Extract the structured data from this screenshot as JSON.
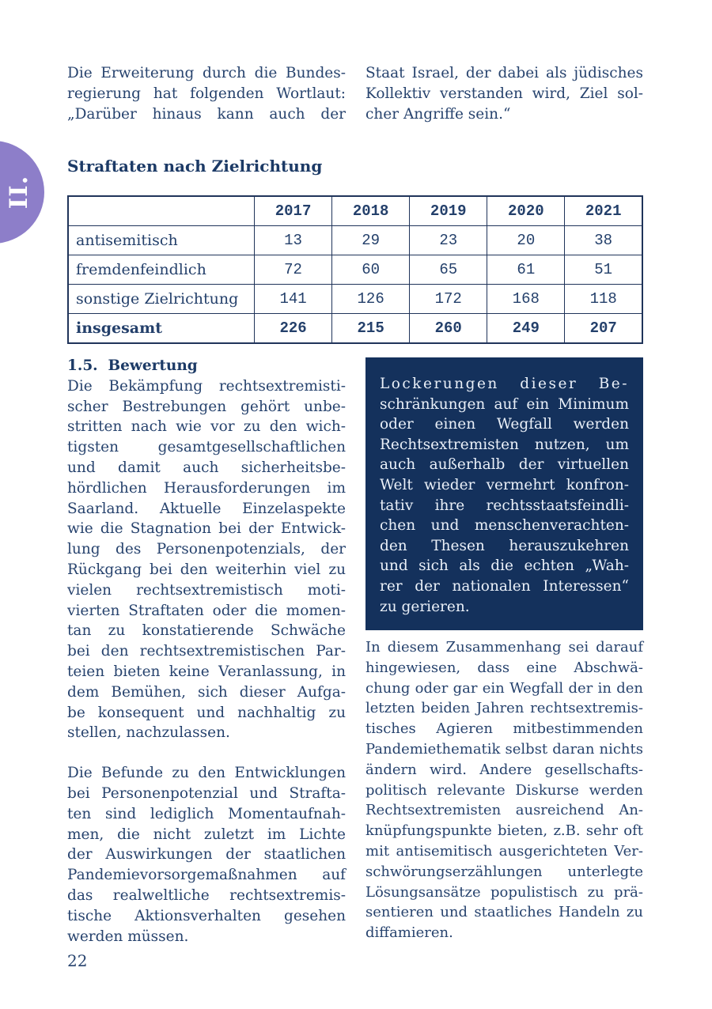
{
  "page": {
    "number": "22",
    "chapter_tab": "II."
  },
  "colors": {
    "body_text": "#27436e",
    "heading_text": "#1c3a66",
    "callout_background": "#14315c",
    "callout_text": "#eaf0f8",
    "chapter_tab_purple": "#8d7ec9",
    "table_border": "#20345a",
    "page_background": "#ffffff"
  },
  "intro": {
    "left_lines": [
      "Die Erweiterung durch die Bundes-",
      "regierung hat folgenden Wortlaut:",
      "„Darüber hinaus kann auch der"
    ],
    "right_lines": [
      "Staat Israel, der dabei als jüdisches",
      "Kollektiv verstanden wird, Ziel sol-",
      "cher Angriffe sein.“"
    ]
  },
  "straftaten": {
    "heading": "Straftaten nach Zielrichtung",
    "table": {
      "columns": [
        "",
        "2017",
        "2018",
        "2019",
        "2020",
        "2021"
      ],
      "rows": [
        {
          "label": "antisemitisch",
          "values": [
            "13",
            "29",
            "23",
            "20",
            "38"
          ]
        },
        {
          "label": "fremdenfeindlich",
          "values": [
            "72",
            "60",
            "65",
            "61",
            "51"
          ]
        },
        {
          "label": "sonstige Zielrichtung",
          "values": [
            "141",
            "126",
            "172",
            "168",
            "118"
          ]
        },
        {
          "label": "insgesamt",
          "values": [
            "226",
            "215",
            "260",
            "249",
            "207"
          ]
        }
      ]
    }
  },
  "chart_data": {
    "type": "table",
    "title": "Straftaten nach Zielrichtung",
    "categories": [
      "2017",
      "2018",
      "2019",
      "2020",
      "2021"
    ],
    "series": [
      {
        "name": "antisemitisch",
        "values": [
          13,
          29,
          23,
          20,
          38
        ]
      },
      {
        "name": "fremdenfeindlich",
        "values": [
          72,
          60,
          65,
          61,
          51
        ]
      },
      {
        "name": "sonstige Zielrichtung",
        "values": [
          141,
          126,
          172,
          168,
          118
        ]
      },
      {
        "name": "insgesamt",
        "values": [
          226,
          215,
          260,
          249,
          207
        ]
      }
    ]
  },
  "bewertung": {
    "heading": "1.5.  Bewertung",
    "left_para1_lines": [
      "Die Bekämpfung rechtsextremisti-",
      "scher Bestrebungen gehört unbe-",
      "stritten nach wie vor zu den wich-",
      "tigsten gesamtgesellschaftlichen",
      "und damit auch sicherheitsbe-",
      "hördlichen Herausforderungen im",
      "Saarland. Aktuelle Einzelaspekte",
      "wie die Stagnation bei der Entwick-",
      "lung des Personenpotenzials, der",
      "Rückgang bei den weiterhin viel zu",
      "vielen rechtsextremistisch moti-",
      "vierten Straftaten oder die momen-",
      "tan zu konstatierende Schwäche",
      "bei den rechtsextremistischen Par-",
      "teien bieten keine Veranlassung, in",
      "dem Bemühen, sich dieser Aufga-",
      "be konsequent und nachhaltig zu",
      "stellen, nachzulassen."
    ],
    "left_para2_lines": [
      "Die Befunde zu den Entwicklungen",
      "bei Personenpotenzial und Strafta-",
      "ten sind lediglich Momentaufnah-",
      "men, die nicht zuletzt im Lichte",
      "der Auswirkungen der staatlichen",
      "Pandemievorsorgemaßnahmen auf",
      "das realweltliche rechtsextremis-",
      "tische Aktionsverhalten gesehen",
      "werden müssen."
    ],
    "callout_lines": [
      "Lockerungen dieser Be-",
      "schränkungen auf ein Minimum",
      "oder einen Wegfall werden",
      "Rechtsextremisten nutzen, um",
      "auch außerhalb der virtuellen",
      "Welt wieder vermehrt konfron-",
      "tativ ihre rechtsstaatsfeindli-",
      "chen und menschenverachten-",
      "den Thesen herauszukehren",
      "und sich als die echten „Wah-",
      "rer der nationalen Interessen“",
      "zu gerieren."
    ],
    "right_para_lines": [
      "In diesem Zusammenhang sei darauf",
      "hingewiesen, dass eine Abschwä-",
      "chung oder gar ein Wegfall der in den",
      "letzten beiden Jahren rechtsextremis-",
      "tisches Agieren mitbestimmenden",
      "Pandemiethematik selbst daran nichts",
      "ändern wird. Andere gesellschafts-",
      "politisch relevante Diskurse werden",
      "Rechtsextremisten ausreichend An-",
      "knüpfungspunkte bieten, z.B. sehr oft",
      "mit antisemitisch ausgerichteten Ver-",
      "schwörungserzählungen unterlegte",
      "Lösungsansätze populistisch zu prä-",
      "sentieren und staatliches Handeln zu",
      "diffamieren."
    ]
  }
}
